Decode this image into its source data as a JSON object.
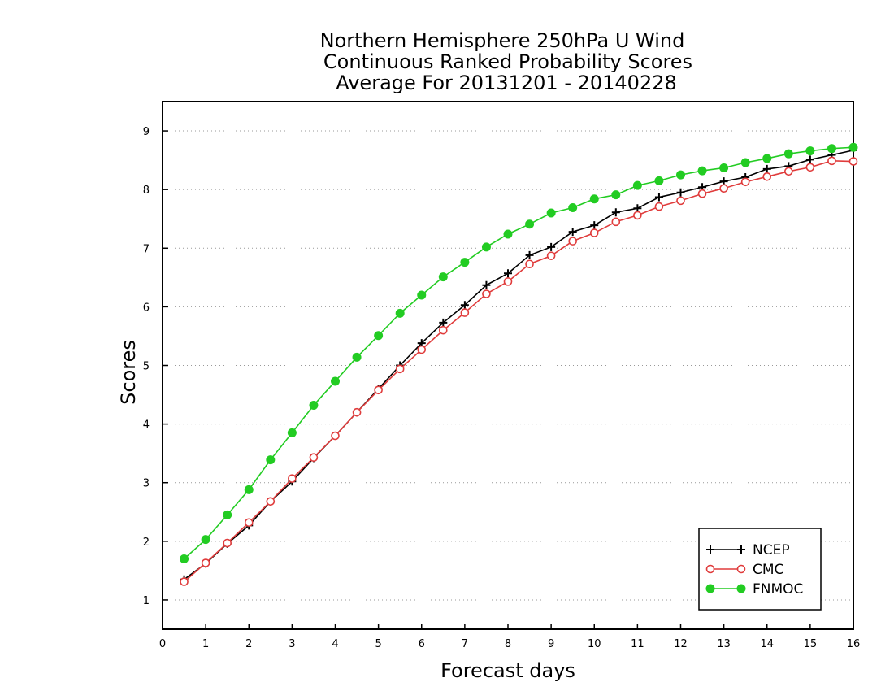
{
  "chart_data": {
    "type": "line",
    "title_lines": [
      "Northern Hemisphere 250hPa U Wind",
      "Continuous Ranked Probability Scores",
      "Average For 20131201 - 20140228"
    ],
    "xlabel": "Forecast days",
    "ylabel": "Scores",
    "xlim": [
      0,
      16
    ],
    "ylim": [
      0.5,
      9.5
    ],
    "xticks": [
      "0",
      "1",
      "2",
      "3",
      "4",
      "5",
      "6",
      "7",
      "8",
      "9",
      "10",
      "11",
      "12",
      "13",
      "14",
      "15",
      "16"
    ],
    "yticks": [
      "1",
      "2",
      "3",
      "4",
      "5",
      "6",
      "7",
      "8",
      "9"
    ],
    "grid": "horizontal-dotted",
    "legend_position": "bottom-right",
    "x": [
      0.5,
      1,
      1.5,
      2,
      2.5,
      3,
      3.5,
      4,
      4.5,
      5,
      5.5,
      6,
      6.5,
      7,
      7.5,
      8,
      8.5,
      9,
      9.5,
      10,
      10.5,
      11,
      11.5,
      12,
      12.5,
      13,
      13.5,
      14,
      14.5,
      15,
      15.5,
      16
    ],
    "series": [
      {
        "name": "NCEP",
        "color": "#000000",
        "marker": "plus",
        "values": [
          1.35,
          1.62,
          1.96,
          2.27,
          2.68,
          3.02,
          3.42,
          3.8,
          4.2,
          4.6,
          5.0,
          5.38,
          5.73,
          6.03,
          6.37,
          6.57,
          6.88,
          7.02,
          7.28,
          7.39,
          7.61,
          7.68,
          7.87,
          7.95,
          8.04,
          8.14,
          8.21,
          8.35,
          8.4,
          8.51,
          8.59,
          8.67
        ]
      },
      {
        "name": "CMC",
        "color": "#e03c3c",
        "marker": "open-circle",
        "values": [
          1.31,
          1.63,
          1.97,
          2.32,
          2.68,
          3.07,
          3.43,
          3.8,
          4.2,
          4.58,
          4.94,
          5.27,
          5.6,
          5.9,
          6.22,
          6.43,
          6.73,
          6.87,
          7.12,
          7.26,
          7.45,
          7.56,
          7.71,
          7.81,
          7.93,
          8.02,
          8.13,
          8.22,
          8.31,
          8.38,
          8.49,
          8.48
        ]
      },
      {
        "name": "FNMOC",
        "color": "#22cc22",
        "marker": "filled-circle",
        "values": [
          1.7,
          2.03,
          2.45,
          2.88,
          3.39,
          3.85,
          4.32,
          4.73,
          5.14,
          5.51,
          5.89,
          6.2,
          6.51,
          6.76,
          7.02,
          7.24,
          7.41,
          7.6,
          7.69,
          7.84,
          7.91,
          8.07,
          8.15,
          8.25,
          8.32,
          8.37,
          8.46,
          8.53,
          8.61,
          8.66,
          8.7,
          8.72
        ]
      }
    ]
  }
}
